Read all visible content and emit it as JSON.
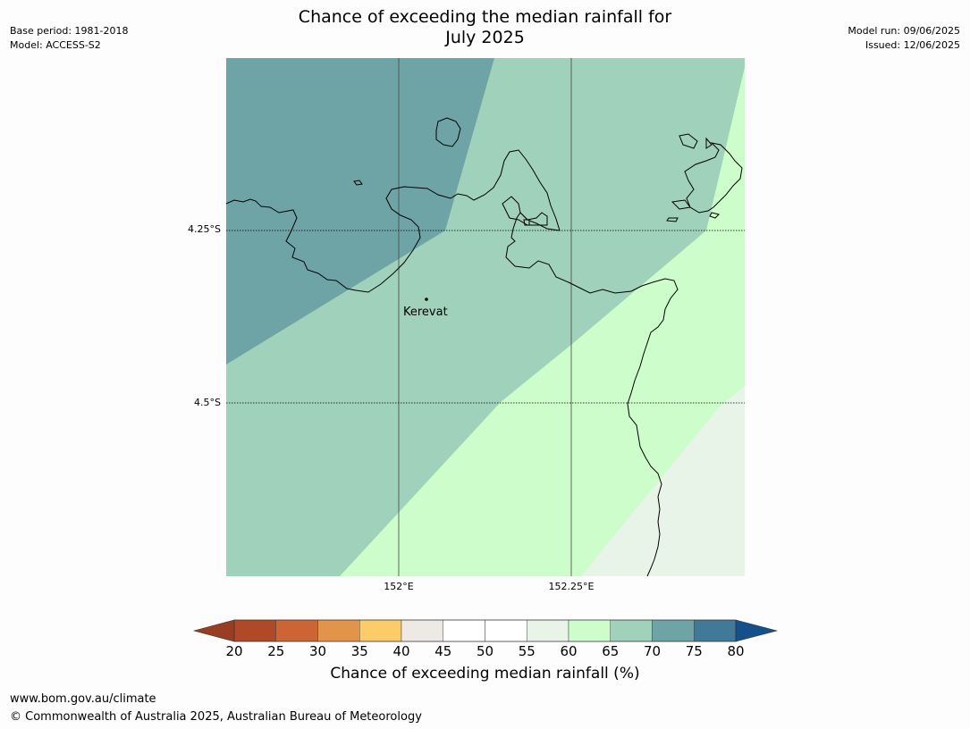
{
  "header": {
    "base_period": "Base period: 1981-2018",
    "model": "Model: ACCESS-S2",
    "model_run": "Model run: 09/06/2025",
    "issued": "Issued: 12/06/2025"
  },
  "title": {
    "line1": "Chance of exceeding the median rainfall for",
    "line2": "July 2025"
  },
  "map": {
    "lat_labels": [
      "4.25°S",
      "4.5°S"
    ],
    "lon_labels": [
      "152°E",
      "152.25°E"
    ],
    "place_name": "Kerevat",
    "zones": [
      {
        "category": "70-75",
        "color": "#6fa4a7"
      },
      {
        "category": "65-70",
        "color": "#9fd1bb"
      },
      {
        "category": "60-65",
        "color": "#ccfdcb"
      },
      {
        "category": "55-60",
        "color": "#e9f4e8"
      }
    ]
  },
  "colorbar": {
    "title": "Chance of exceeding median rainfall (%)",
    "ticks": [
      "20",
      "25",
      "30",
      "35",
      "40",
      "45",
      "50",
      "55",
      "60",
      "65",
      "70",
      "75",
      "80"
    ],
    "colors": [
      "#b04a26",
      "#cc6433",
      "#e2944b",
      "#fecb69",
      "#ede9e5",
      "#ffffff",
      "#ffffff",
      "#e9f4e8",
      "#ccfdcb",
      "#9fd1bb",
      "#6fa4a7",
      "#407a98"
    ],
    "under_color": "#993e23",
    "over_color": "#15508a"
  },
  "footer": {
    "url": "www.bom.gov.au/climate",
    "copyright": "© Commonwealth of Australia 2025, Australian Bureau of Meteorology"
  }
}
